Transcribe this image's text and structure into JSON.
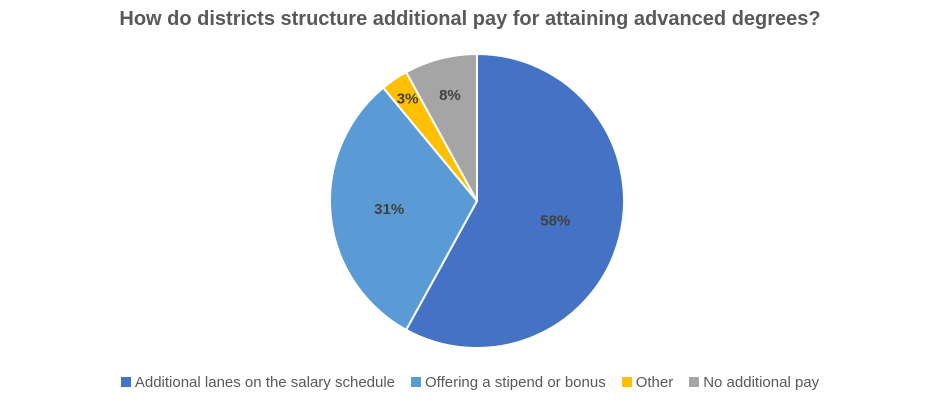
{
  "chart_data": {
    "type": "pie",
    "title": "How do districts structure additional pay for attaining advanced degrees?",
    "slices": [
      {
        "name": "Additional lanes on the salary schedule",
        "value": 58,
        "label": "58%",
        "color": "#4472C4"
      },
      {
        "name": "Offering a stipend or bonus",
        "value": 31,
        "label": "31%",
        "color": "#5B9BD5"
      },
      {
        "name": "Other",
        "value": 3,
        "label": "3%",
        "color": "#FFC000"
      },
      {
        "name": "No additional pay",
        "value": 8,
        "label": "8%",
        "color": "#A5A5A5"
      }
    ],
    "legend_position": "bottom"
  }
}
